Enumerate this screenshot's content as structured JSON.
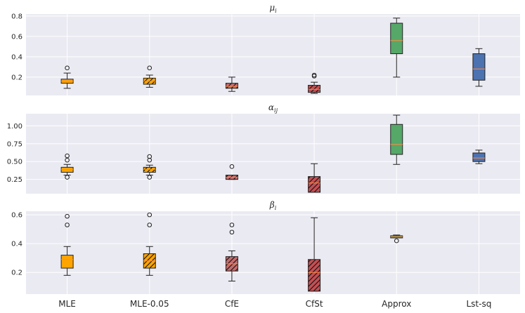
{
  "chart_data": {
    "type": "boxplot",
    "categories": [
      "MLE",
      "MLE-0.05",
      "CfE",
      "CfSt",
      "Approx",
      "Lst-sq"
    ],
    "styles": [
      {
        "color": "#ffa500",
        "hatch": false
      },
      {
        "color": "#ffa500",
        "hatch": true
      },
      {
        "color": "#c66b6b",
        "hatch": true
      },
      {
        "color": "#c44e52",
        "hatch": true
      },
      {
        "color": "#55a868",
        "hatch": false
      },
      {
        "color": "#4c72b0",
        "hatch": false
      }
    ],
    "median_color": "#ff8c42",
    "panels": [
      {
        "title": "μi",
        "title_main": "μ",
        "title_sub": "i",
        "ylim": [
          0.02,
          0.82
        ],
        "yticks": [
          0.2,
          0.4,
          0.6,
          0.8
        ],
        "ytick_labels": [
          "0.2",
          "0.4",
          "0.6",
          "0.8"
        ],
        "boxes": [
          {
            "whislo": 0.09,
            "q1": 0.14,
            "med": 0.16,
            "q3": 0.18,
            "whishi": 0.24,
            "fliers": [
              0.29
            ]
          },
          {
            "whislo": 0.1,
            "q1": 0.13,
            "med": 0.16,
            "q3": 0.19,
            "whishi": 0.22,
            "fliers": [
              0.29
            ]
          },
          {
            "whislo": 0.06,
            "q1": 0.09,
            "med": 0.11,
            "q3": 0.14,
            "whishi": 0.2,
            "fliers": []
          },
          {
            "whislo": 0.04,
            "q1": 0.05,
            "med": 0.08,
            "q3": 0.12,
            "whishi": 0.15,
            "fliers": [
              0.21,
              0.22
            ]
          },
          {
            "whislo": 0.2,
            "q1": 0.43,
            "med": 0.56,
            "q3": 0.73,
            "whishi": 0.78,
            "fliers": []
          },
          {
            "whislo": 0.11,
            "q1": 0.17,
            "med": 0.28,
            "q3": 0.43,
            "whishi": 0.48,
            "fliers": []
          }
        ]
      },
      {
        "title": "αij",
        "title_main": "α",
        "title_sub": "ij",
        "ylim": [
          0.05,
          1.17
        ],
        "yticks": [
          0.25,
          0.5,
          0.75,
          1.0
        ],
        "ytick_labels": [
          "0.25",
          "0.50",
          "0.75",
          "1.00"
        ],
        "boxes": [
          {
            "whislo": 0.31,
            "q1": 0.35,
            "med": 0.39,
            "q3": 0.42,
            "whishi": 0.46,
            "fliers": [
              0.28,
              0.52,
              0.58
            ]
          },
          {
            "whislo": 0.31,
            "q1": 0.35,
            "med": 0.39,
            "q3": 0.42,
            "whishi": 0.45,
            "fliers": [
              0.28,
              0.52,
              0.57
            ]
          },
          {
            "whislo": 0.25,
            "q1": 0.25,
            "med": 0.28,
            "q3": 0.31,
            "whishi": 0.31,
            "fliers": [
              0.43
            ]
          },
          {
            "whislo": 0.07,
            "q1": 0.07,
            "med": 0.2,
            "q3": 0.29,
            "whishi": 0.47,
            "fliers": []
          },
          {
            "whislo": 0.46,
            "q1": 0.6,
            "med": 0.74,
            "q3": 1.02,
            "whishi": 1.15,
            "fliers": []
          },
          {
            "whislo": 0.47,
            "q1": 0.5,
            "med": 0.55,
            "q3": 0.62,
            "whishi": 0.66,
            "fliers": []
          }
        ]
      },
      {
        "title": "βi",
        "title_main": "β",
        "title_sub": "i",
        "ylim": [
          0.05,
          0.625
        ],
        "yticks": [
          0.2,
          0.4,
          0.6
        ],
        "ytick_labels": [
          "0.2",
          "0.4",
          "0.6"
        ],
        "boxes": [
          {
            "whislo": 0.18,
            "q1": 0.23,
            "med": 0.29,
            "q3": 0.32,
            "whishi": 0.38,
            "fliers": [
              0.53,
              0.59
            ]
          },
          {
            "whislo": 0.18,
            "q1": 0.23,
            "med": 0.28,
            "q3": 0.33,
            "whishi": 0.38,
            "fliers": [
              0.53,
              0.6
            ]
          },
          {
            "whislo": 0.14,
            "q1": 0.21,
            "med": 0.26,
            "q3": 0.31,
            "whishi": 0.35,
            "fliers": [
              0.48,
              0.53
            ]
          },
          {
            "whislo": 0.07,
            "q1": 0.07,
            "med": 0.2,
            "q3": 0.29,
            "whishi": 0.58,
            "fliers": []
          },
          {
            "whislo": 0.44,
            "q1": 0.44,
            "med": 0.45,
            "q3": 0.455,
            "whishi": 0.46,
            "fliers": [
              0.42
            ]
          },
          null
        ]
      }
    ]
  }
}
